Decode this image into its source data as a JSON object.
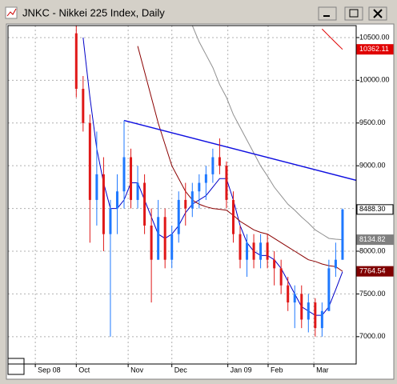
{
  "window": {
    "title": "JNKC - Nikkei 225 Index, Daily"
  },
  "chart_data": {
    "type": "candlestick",
    "ylim": [
      6680,
      10640
    ],
    "yticks": [
      {
        "value": 7000,
        "label": "7000.00"
      },
      {
        "value": 7500,
        "label": "7500.00"
      },
      {
        "value": 8000,
        "label": "8000.00"
      },
      {
        "value": 8500,
        "label": "8500.00"
      },
      {
        "value": 9000,
        "label": "9000.00"
      },
      {
        "value": 9500,
        "label": "9500.00"
      },
      {
        "value": 10000,
        "label": "10000.00"
      },
      {
        "value": 10500,
        "label": "10500.00"
      }
    ],
    "xlim": [
      -10,
      41
    ],
    "xticks": [
      {
        "value": -6,
        "label": "Sep 08"
      },
      {
        "value": 0,
        "label": "Oct"
      },
      {
        "value": 7.6,
        "label": "Nov"
      },
      {
        "value": 14,
        "label": "Dec"
      },
      {
        "value": 22.2,
        "label": "Jan 09"
      },
      {
        "value": 28.1,
        "label": "Feb"
      },
      {
        "value": 34.8,
        "label": "Mar"
      }
    ],
    "grid": true,
    "up_color": "#1e78ff",
    "down_color": "#e01818",
    "open": [
      10550,
      9900,
      9500,
      8600,
      8900,
      8200,
      8500,
      8700,
      9100,
      8600,
      8800,
      8300,
      7900,
      8400,
      7900,
      8200,
      8600,
      8500,
      8700,
      8800,
      8900,
      9100,
      9000,
      8600,
      8200,
      7900,
      8100,
      7900,
      8100,
      7900,
      7800,
      7600,
      7400,
      7500,
      7200,
      7400,
      7100,
      7300,
      7800,
      7900
    ],
    "high": [
      10640,
      10050,
      9600,
      9400,
      9100,
      8600,
      8900,
      9530,
      9200,
      9000,
      8900,
      8500,
      8600,
      8500,
      8300,
      8700,
      8800,
      8800,
      8900,
      9000,
      9200,
      9320,
      9050,
      8700,
      8300,
      8200,
      8200,
      8200,
      8200,
      8000,
      7900,
      7700,
      7600,
      7600,
      7500,
      7450,
      7400,
      7900,
      8100,
      8500
    ],
    "low": [
      9800,
      9400,
      8100,
      8300,
      8000,
      7000,
      8200,
      8500,
      8500,
      8500,
      8200,
      7400,
      7900,
      7800,
      7800,
      8100,
      8300,
      8400,
      8500,
      8600,
      8800,
      8900,
      8500,
      8100,
      7800,
      7700,
      7800,
      7800,
      7800,
      7600,
      7500,
      7300,
      7100,
      7100,
      7050,
      7000,
      7000,
      7300,
      7700,
      7900
    ],
    "close": [
      9900,
      9500,
      8600,
      8900,
      8200,
      8500,
      8700,
      9100,
      8600,
      8800,
      8300,
      7900,
      8400,
      7900,
      8200,
      8600,
      8500,
      8700,
      8800,
      8900,
      9100,
      9000,
      8600,
      8200,
      7900,
      8100,
      7900,
      8100,
      7900,
      7800,
      7600,
      7400,
      7500,
      7200,
      7400,
      7100,
      7300,
      7800,
      7900,
      8488.3
    ],
    "series": [
      {
        "color": "#0000c8",
        "values": [
          null,
          10500,
          9800,
          9200,
          8800,
          8500,
          8500,
          8600,
          8800,
          8800,
          8600,
          8400,
          8200,
          8150,
          8200,
          8300,
          8450,
          8550,
          8600,
          8650,
          8750,
          8850,
          8850,
          8600,
          8300,
          8100,
          8000,
          7950,
          7950,
          7900,
          7800,
          7650,
          7500,
          7350,
          7300,
          7250,
          7250,
          7350,
          7550,
          7760
        ]
      },
      {
        "color": "#8b0000",
        "values": [
          null,
          null,
          null,
          null,
          null,
          null,
          null,
          null,
          null,
          10400,
          10100,
          9800,
          9500,
          9250,
          9000,
          8850,
          8700,
          8600,
          8550,
          8520,
          8500,
          8490,
          8480,
          8420,
          8350,
          8300,
          8250,
          8220,
          8200,
          8150,
          8100,
          8050,
          8000,
          7950,
          7900,
          7880,
          7850,
          7830,
          7820,
          7764.54
        ]
      },
      {
        "color": "#909090",
        "values": [
          null,
          null,
          null,
          null,
          null,
          null,
          null,
          null,
          null,
          null,
          null,
          null,
          null,
          null,
          null,
          null,
          null,
          10640,
          10450,
          10300,
          10150,
          9950,
          9800,
          9600,
          9450,
          9300,
          9150,
          9000,
          8880,
          8750,
          8650,
          8550,
          8480,
          8400,
          8330,
          8250,
          8200,
          8150,
          8140,
          8134.82
        ]
      },
      {
        "color": "#e00000",
        "values": [
          null,
          null,
          null,
          null,
          null,
          null,
          null,
          null,
          null,
          null,
          null,
          null,
          null,
          null,
          null,
          null,
          null,
          null,
          null,
          null,
          null,
          null,
          null,
          null,
          null,
          null,
          null,
          null,
          null,
          null,
          null,
          null,
          null,
          null,
          null,
          null,
          10600,
          10520,
          10440,
          10362.11
        ]
      }
    ],
    "trendline": {
      "color": "#1010e0",
      "x": [
        7,
        41
      ],
      "values": [
        9530,
        8830
      ]
    },
    "price_labels": [
      {
        "value": 10362.11,
        "label": "10362.11",
        "color": "#e00000"
      },
      {
        "value": 8488.3,
        "label": "8488.30",
        "color": "#ffffff"
      },
      {
        "value": 8134.82,
        "label": "8134.82",
        "color": "#808080"
      },
      {
        "value": 7764.54,
        "label": "7764.54",
        "color": "#800000"
      }
    ]
  }
}
